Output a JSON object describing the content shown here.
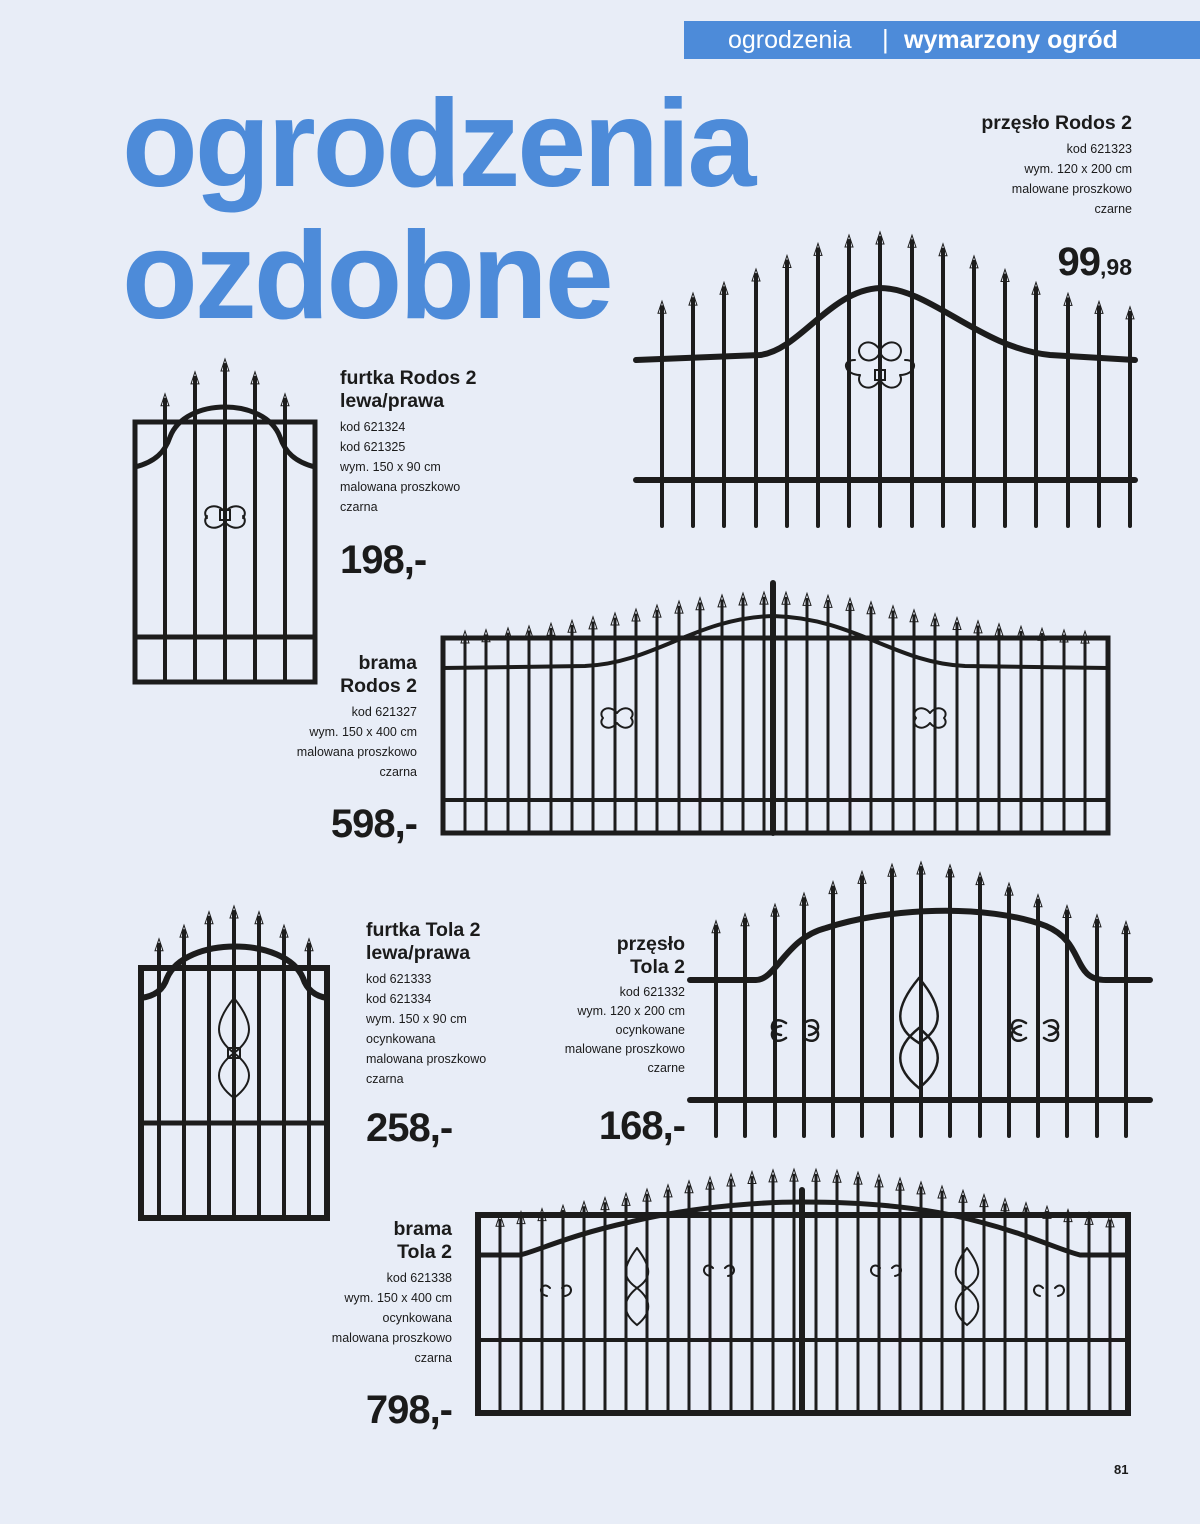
{
  "header": {
    "category": "ogrodzenia",
    "separator": "|",
    "section": "wymarzony ogród"
  },
  "headline": {
    "line1": "ogrodzenia",
    "line2": "ozdobne"
  },
  "products": {
    "przeslo_rodos": {
      "name_l1": "przęsło Rodos 2",
      "spec": [
        "kod 621323",
        "wym. 120 x 200 cm",
        "malowane proszkowo",
        "czarne"
      ],
      "price_main": "99",
      "price_cents": ",98"
    },
    "furtka_rodos": {
      "name_l1": "furtka Rodos 2",
      "name_l2": "lewa/prawa",
      "spec": [
        "kod 621324",
        "kod 621325",
        "wym. 150 x 90 cm",
        "malowana proszkowo",
        "czarna"
      ],
      "price": "198,-"
    },
    "brama_rodos": {
      "name_l1": "brama",
      "name_l2": "Rodos 2",
      "spec": [
        "kod 621327",
        "wym. 150 x 400 cm",
        "malowana proszkowo",
        "czarna"
      ],
      "price": "598,-"
    },
    "furtka_tola": {
      "name_l1": "furtka Tola 2",
      "name_l2": "lewa/prawa",
      "spec": [
        "kod 621333",
        "kod 621334",
        "wym. 150 x 90 cm",
        "ocynkowana",
        "malowana proszkowo",
        "czarna"
      ],
      "price": "258,-"
    },
    "przeslo_tola": {
      "name_l1": "przęsło",
      "name_l2": "Tola 2",
      "spec": [
        "kod 621332",
        "wym. 120 x 200 cm",
        "ocynkowane",
        "malowane proszkowo",
        "czarne"
      ],
      "price": "168,-"
    },
    "brama_tola": {
      "name_l1": "brama",
      "name_l2": "Tola 2",
      "spec": [
        "kod 621338",
        "wym. 150 x 400 cm",
        "ocynkowana",
        "malowana proszkowo",
        "czarna"
      ],
      "price": "798,-"
    }
  },
  "page_number": "81",
  "colors": {
    "accent": "#4d8bd9",
    "background": "#e8edf7",
    "ink": "#1c1c1c"
  }
}
